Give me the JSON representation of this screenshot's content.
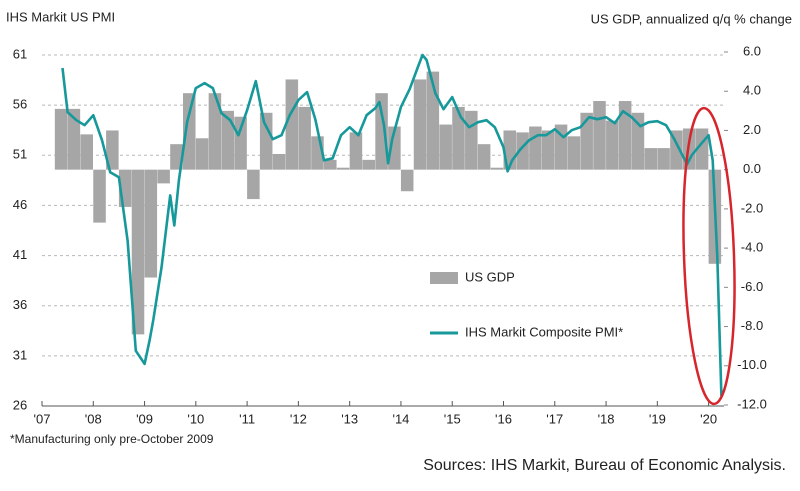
{
  "chart_data": {
    "type": "bar",
    "title": "IHS Markit US PMI",
    "y2_title": "US GDP, annualized q/q % change",
    "footnote": "*Manufacturing only pre-October 2009",
    "source": "Sources: IHS Markit, Bureau of Economic Analysis.",
    "xlim": [
      2007,
      2020.3
    ],
    "xticks": [
      {
        "value": 2007,
        "label": "'07"
      },
      {
        "value": 2008,
        "label": "'08"
      },
      {
        "value": 2009,
        "label": "'09"
      },
      {
        "value": 2010,
        "label": "'10"
      },
      {
        "value": 2011,
        "label": "'11"
      },
      {
        "value": 2012,
        "label": "'12"
      },
      {
        "value": 2013,
        "label": "'13"
      },
      {
        "value": 2014,
        "label": "'14"
      },
      {
        "value": 2015,
        "label": "'15"
      },
      {
        "value": 2016,
        "label": "'16"
      },
      {
        "value": 2017,
        "label": "'17"
      },
      {
        "value": 2018,
        "label": "'18"
      },
      {
        "value": 2019,
        "label": "'19"
      },
      {
        "value": 2020,
        "label": "'20"
      }
    ],
    "ylim": [
      26,
      61
    ],
    "yticks": [
      26,
      31,
      36,
      41,
      46,
      51,
      56,
      61
    ],
    "y2lim": [
      -12,
      6
    ],
    "y2ticks": [
      {
        "value": 6,
        "label": "6.0"
      },
      {
        "value": 4,
        "label": "4.0"
      },
      {
        "value": 2,
        "label": "2.0"
      },
      {
        "value": 0,
        "label": "0.0"
      },
      {
        "value": -2,
        "label": "-2.0"
      },
      {
        "value": -4,
        "label": "-4.0"
      },
      {
        "value": -6,
        "label": "-6.0"
      },
      {
        "value": -8,
        "label": "-8.0"
      },
      {
        "value": -10,
        "label": "-10.0"
      },
      {
        "value": -12,
        "label": "-12.0"
      }
    ],
    "grid": true,
    "series": [
      {
        "name": "US GDP",
        "type": "bar",
        "axis": "y2",
        "color": "#a6a6a6",
        "x": [
          2007.25,
          2007.5,
          2007.75,
          2008,
          2008.25,
          2008.5,
          2008.75,
          2009,
          2009.25,
          2009.5,
          2009.75,
          2010,
          2010.25,
          2010.5,
          2010.75,
          2011,
          2011.25,
          2011.5,
          2011.75,
          2012,
          2012.25,
          2012.5,
          2012.75,
          2013,
          2013.25,
          2013.5,
          2013.75,
          2014,
          2014.25,
          2014.5,
          2014.75,
          2015,
          2015.25,
          2015.5,
          2015.75,
          2016,
          2016.25,
          2016.5,
          2016.75,
          2017,
          2017.25,
          2017.5,
          2017.75,
          2018,
          2018.25,
          2018.5,
          2018.75,
          2019,
          2019.25,
          2019.5,
          2019.75,
          2020
        ],
        "values": [
          3.1,
          3.1,
          1.8,
          -2.7,
          2.0,
          -1.9,
          -8.4,
          -5.5,
          -0.7,
          1.3,
          3.9,
          1.6,
          3.9,
          3.0,
          2.7,
          -1.5,
          2.9,
          0.8,
          4.6,
          3.2,
          1.7,
          0.5,
          0.1,
          1.9,
          0.5,
          3.9,
          2.2,
          -1.1,
          4.6,
          5.0,
          2.3,
          3.2,
          3.0,
          1.3,
          0.1,
          2.0,
          1.9,
          2.2,
          2.0,
          2.3,
          1.7,
          2.9,
          3.5,
          2.5,
          3.5,
          2.9,
          1.1,
          1.1,
          2.0,
          2.1,
          2.1,
          -4.8
        ]
      },
      {
        "name": "IHS Markit Composite PMI*",
        "type": "line",
        "axis": "y",
        "color": "#17989a",
        "x": [
          2007.4,
          2007.5,
          2007.67,
          2007.83,
          2008,
          2008.17,
          2008.33,
          2008.5,
          2008.67,
          2008.83,
          2009,
          2009.1,
          2009.17,
          2009.33,
          2009.5,
          2009.58,
          2009.67,
          2009.83,
          2010,
          2010.17,
          2010.33,
          2010.5,
          2010.67,
          2010.83,
          2011,
          2011.17,
          2011.33,
          2011.5,
          2011.67,
          2011.83,
          2012,
          2012.17,
          2012.33,
          2012.5,
          2012.67,
          2012.83,
          2013,
          2013.17,
          2013.33,
          2013.5,
          2013.58,
          2013.67,
          2013.75,
          2013.83,
          2014,
          2014.17,
          2014.33,
          2014.42,
          2014.5,
          2014.67,
          2014.83,
          2015,
          2015.17,
          2015.33,
          2015.5,
          2015.67,
          2015.83,
          2016,
          2016.08,
          2016.17,
          2016.33,
          2016.5,
          2016.67,
          2016.83,
          2017,
          2017.17,
          2017.33,
          2017.5,
          2017.67,
          2017.83,
          2018,
          2018.17,
          2018.33,
          2018.5,
          2018.67,
          2018.83,
          2019,
          2019.17,
          2019.33,
          2019.5,
          2019.58,
          2019.67,
          2019.83,
          2020,
          2020.08,
          2020.17,
          2020.25
        ],
        "values": [
          59.7,
          55.3,
          54.5,
          54.0,
          55.0,
          52.5,
          49.3,
          48.8,
          42.5,
          31.5,
          30.2,
          32.6,
          34.6,
          39.8,
          47.0,
          44.0,
          48.5,
          54.3,
          57.7,
          58.2,
          57.7,
          55.2,
          54.5,
          53.0,
          55.5,
          58.4,
          54.3,
          52.6,
          53.0,
          55.0,
          56.5,
          57.3,
          54.6,
          50.5,
          50.7,
          53.0,
          53.8,
          53.0,
          55.0,
          55.7,
          56.3,
          54.0,
          50.2,
          52.6,
          55.8,
          57.6,
          59.8,
          61.0,
          60.5,
          57.2,
          55.6,
          56.8,
          54.8,
          53.8,
          54.3,
          54.5,
          53.8,
          51.8,
          49.4,
          50.5,
          51.6,
          52.5,
          53.0,
          53.0,
          53.6,
          52.8,
          53.5,
          53.8,
          54.8,
          54.6,
          54.8,
          54.2,
          55.4,
          54.8,
          53.9,
          54.3,
          54.4,
          54.0,
          52.6,
          50.9,
          50.1,
          51.0,
          52.0,
          53.0,
          50.5,
          40.9,
          27.0
        ]
      }
    ]
  }
}
